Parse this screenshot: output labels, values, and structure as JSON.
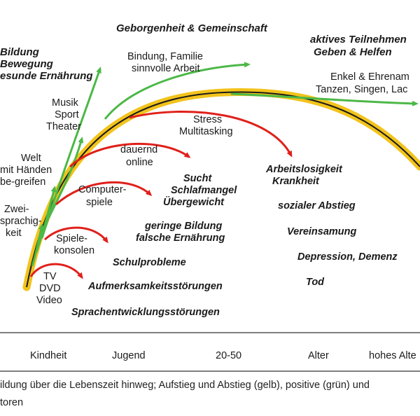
{
  "labels": {
    "top_center": "Geborgenheit & Gemeinschaft",
    "top_left_1": "Bildung",
    "top_left_2": "Bewegung",
    "top_left_3": "esunde Ernährung",
    "top_right_1": "aktives Teilnehmen",
    "top_right_2": "Geben & Helfen",
    "bindung_1": "Bindung, Familie",
    "bindung_2": "sinnvolle Arbeit",
    "enkel_1": "Enkel & Ehrenam",
    "enkel_2": "Tanzen, Singen, Lac",
    "musik_1": "Musik",
    "musik_2": "Sport",
    "musik_3": "Theater",
    "stress_1": "Stress",
    "stress_2": "Multitasking",
    "welt_1": "Welt",
    "welt_2": "mit Händen",
    "welt_3": "be-greifen",
    "online_1": "dauernd",
    "online_2": "online",
    "sucht_1": "Sucht",
    "sucht_2": "Schlafmangel",
    "sucht_3": "Übergewicht",
    "arbeit_1": "Arbeitslosigkeit",
    "arbeit_2": "Krankheit",
    "zwei_1": "Zwei-",
    "zwei_2": "sprachig-",
    "zwei_3": "keit",
    "computer_1": "Computer-",
    "computer_2": "spiele",
    "sozial": "sozialer Abstieg",
    "bildung_1": "geringe Bildung",
    "bildung_2": "falsche Ernährung",
    "verein": "Vereinsamung",
    "spiele_1": "Spiele-",
    "spiele_2": "konsolen",
    "schul": "Schulprobleme",
    "depression": "Depression, Demenz",
    "tv_1": "TV",
    "tv_2": "DVD",
    "tv_3": "Video",
    "aufmerk": "Aufmerksamkeitsstörungen",
    "tod": "Tod",
    "sprach": "Sprachentwicklungsstörungen"
  },
  "axis": {
    "ticks": [
      "Kindheit",
      "Jugend",
      "20-50",
      "Alter",
      "hohes Alte"
    ]
  },
  "caption": {
    "line1": "ildung über die Lebenszeit hinweg; Aufstieg und Abstieg (gelb), positive (grün) und",
    "line2": "toren"
  },
  "colors": {
    "curve_band": "#f2c31b",
    "curve_line": "#1a1a1a",
    "positive": "#4cb847",
    "negative": "#e0201b",
    "axis_line": "#333333"
  }
}
